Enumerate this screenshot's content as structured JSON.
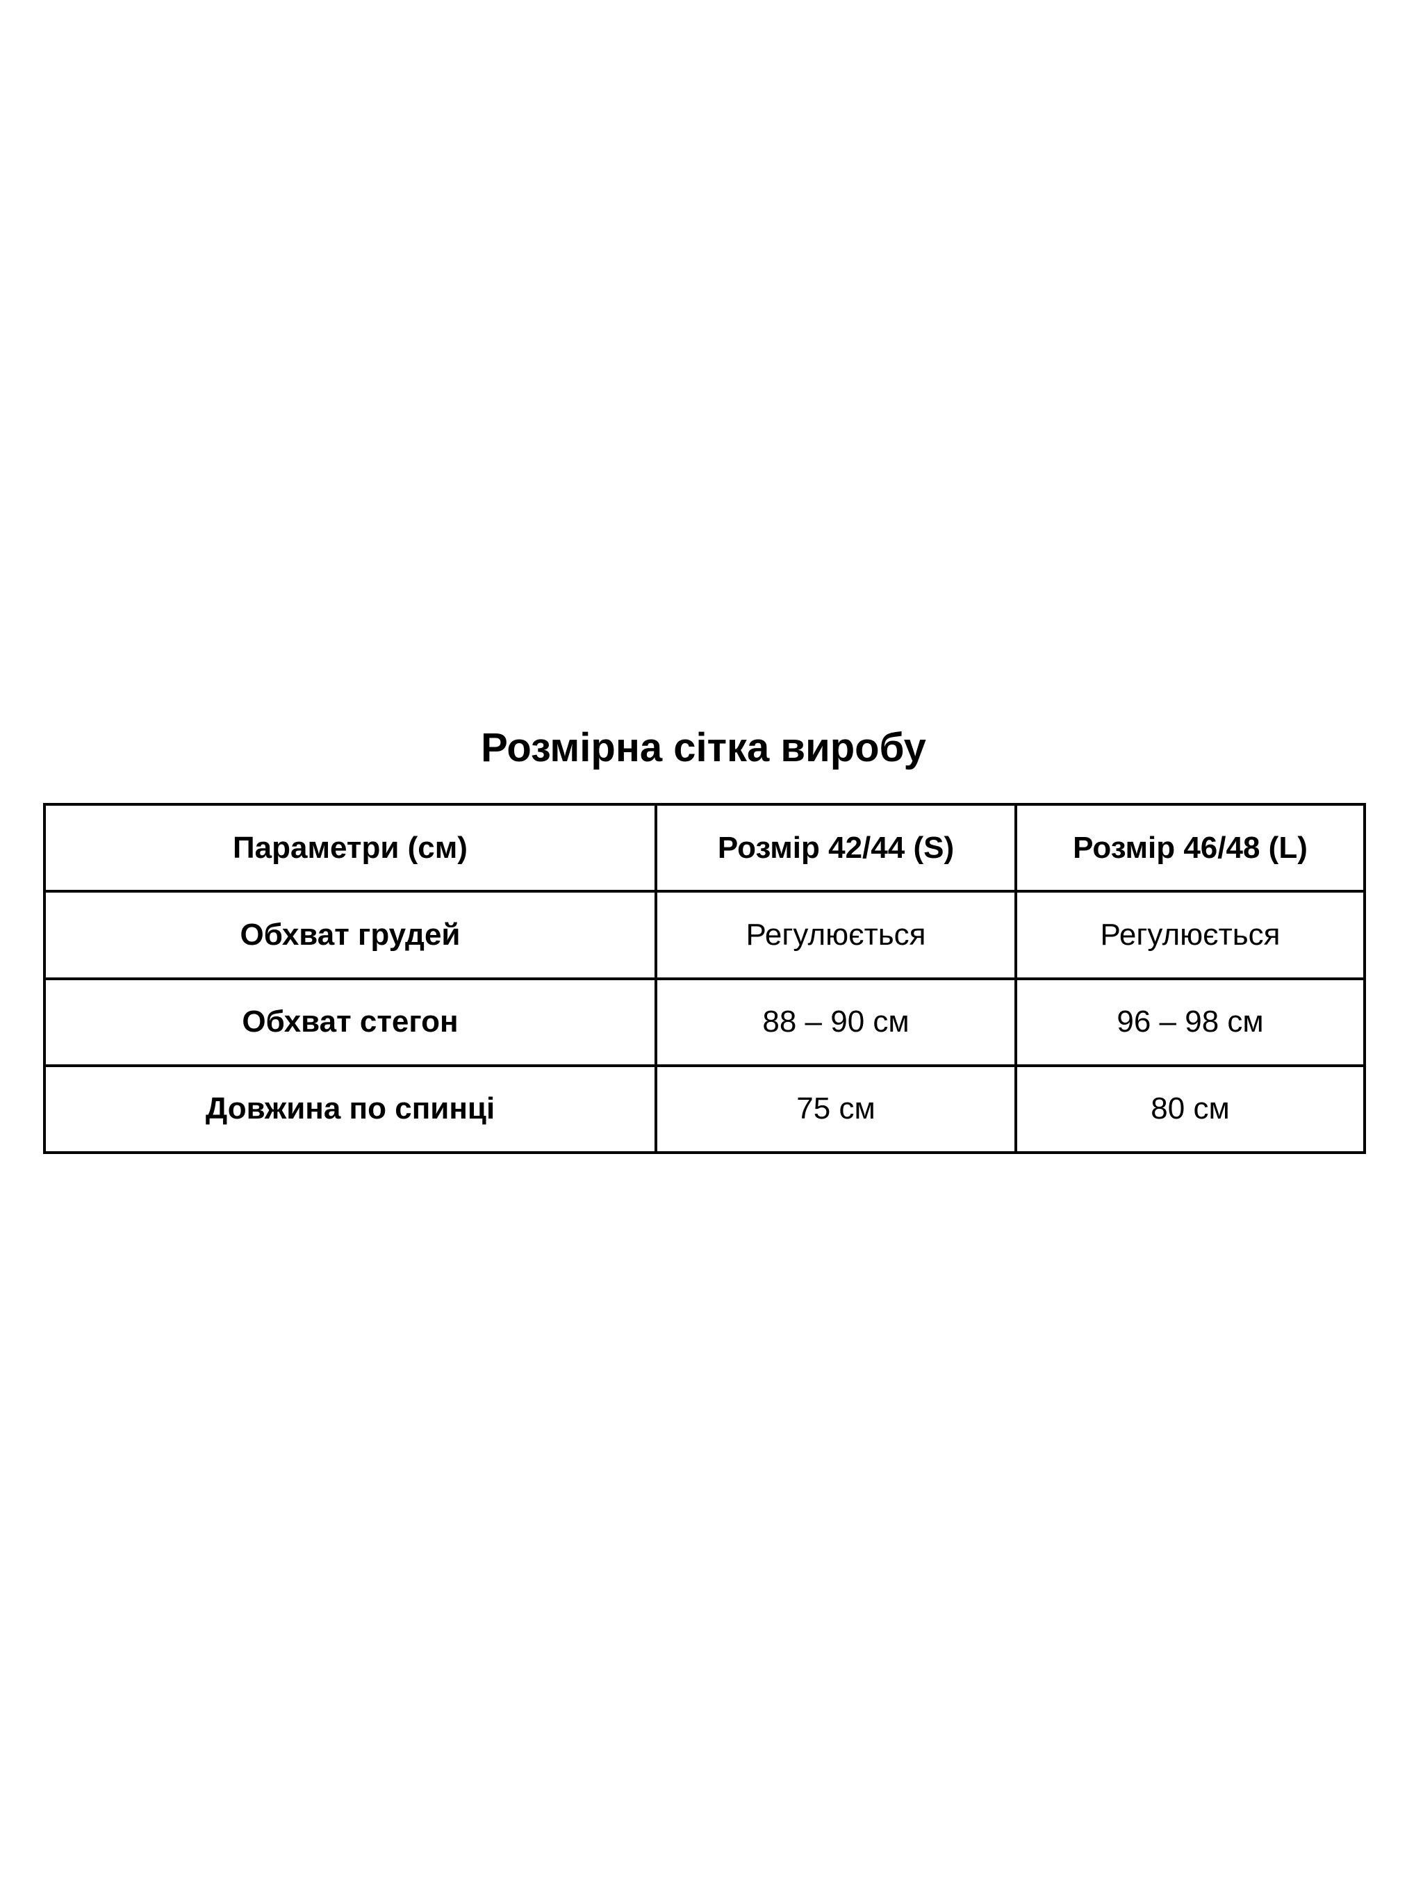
{
  "title": "Розмірна сітка виробу",
  "table": {
    "headers": [
      "Параметри (см)",
      "Розмір 42/44 (S)",
      "Розмір 46/48 (L)"
    ],
    "rows": [
      [
        "Обхват грудей",
        "Регулюється",
        "Регулюється"
      ],
      [
        "Обхват стегон",
        "88 – 90 см",
        "96 – 98 см"
      ],
      [
        "Довжина по спинці",
        "75 см",
        "80 см"
      ]
    ]
  }
}
